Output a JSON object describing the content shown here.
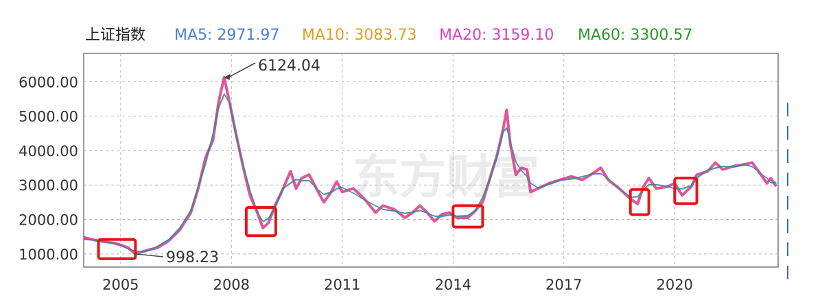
{
  "chart_data": {
    "type": "line",
    "title": "上证指数",
    "legend": [
      {
        "text": "MA5: 2971.97",
        "color": "#4a7fd8"
      },
      {
        "text": "MA10: 3083.73",
        "color": "#e0a020"
      },
      {
        "text": "MA20: 3159.10",
        "color": "#e040c0"
      },
      {
        "text": "MA60: 3300.57",
        "color": "#2a9a2a"
      }
    ],
    "xlim": [
      2004.0,
      2022.8
    ],
    "ylim": [
      620,
      6820
    ],
    "xticks": [
      {
        "value": 2005,
        "label": "2005"
      },
      {
        "value": 2008,
        "label": "2008"
      },
      {
        "value": 2011,
        "label": "2011"
      },
      {
        "value": 2014,
        "label": "2014"
      },
      {
        "value": 2017,
        "label": "2017"
      },
      {
        "value": 2020,
        "label": "2020"
      }
    ],
    "yticks": [
      {
        "value": 1000,
        "label": "1000.00"
      },
      {
        "value": 2000,
        "label": "2000.00"
      },
      {
        "value": 3000,
        "label": "3000.00"
      },
      {
        "value": 4000,
        "label": "4000.00"
      },
      {
        "value": 5000,
        "label": "5000.00"
      },
      {
        "value": 6000,
        "label": "6000.00"
      }
    ],
    "grid": true,
    "watermark": "东方财富",
    "annotations": [
      {
        "label": "6124.04",
        "x": 2007.8,
        "y": 6124.04
      },
      {
        "label": "998.23",
        "x": 2005.4,
        "y": 998.23
      }
    ],
    "highlight_boxes": [
      {
        "x0": 2004.4,
        "x1": 2005.4,
        "y0": 860,
        "y1": 1420
      },
      {
        "x0": 2008.4,
        "x1": 2009.2,
        "y0": 1530,
        "y1": 2350
      },
      {
        "x0": 2014.0,
        "x1": 2014.8,
        "y0": 1780,
        "y1": 2400
      },
      {
        "x0": 2018.8,
        "x1": 2019.3,
        "y0": 2140,
        "y1": 2870
      },
      {
        "x0": 2020.0,
        "x1": 2020.6,
        "y0": 2460,
        "y1": 3200
      }
    ],
    "series": [
      {
        "name": "上证指数",
        "color": "#d83a8a",
        "points": [
          [
            2004.0,
            1480
          ],
          [
            2004.4,
            1380
          ],
          [
            2004.8,
            1320
          ],
          [
            2005.0,
            1260
          ],
          [
            2005.2,
            1180
          ],
          [
            2005.4,
            998.23
          ],
          [
            2005.6,
            1070
          ],
          [
            2005.8,
            1130
          ],
          [
            2006.0,
            1180
          ],
          [
            2006.3,
            1380
          ],
          [
            2006.6,
            1700
          ],
          [
            2006.9,
            2200
          ],
          [
            2007.1,
            2900
          ],
          [
            2007.3,
            3800
          ],
          [
            2007.5,
            4300
          ],
          [
            2007.65,
            5400
          ],
          [
            2007.8,
            6124.04
          ],
          [
            2007.95,
            5400
          ],
          [
            2008.1,
            4600
          ],
          [
            2008.3,
            3600
          ],
          [
            2008.5,
            2700
          ],
          [
            2008.7,
            2200
          ],
          [
            2008.85,
            1750
          ],
          [
            2009.0,
            1900
          ],
          [
            2009.2,
            2450
          ],
          [
            2009.4,
            2900
          ],
          [
            2009.6,
            3400
          ],
          [
            2009.75,
            2900
          ],
          [
            2009.9,
            3200
          ],
          [
            2010.1,
            3300
          ],
          [
            2010.3,
            2900
          ],
          [
            2010.5,
            2500
          ],
          [
            2010.7,
            2800
          ],
          [
            2010.85,
            3100
          ],
          [
            2011.0,
            2800
          ],
          [
            2011.3,
            2900
          ],
          [
            2011.6,
            2600
          ],
          [
            2011.9,
            2200
          ],
          [
            2012.1,
            2400
          ],
          [
            2012.4,
            2300
          ],
          [
            2012.7,
            2050
          ],
          [
            2012.9,
            2200
          ],
          [
            2013.1,
            2400
          ],
          [
            2013.3,
            2200
          ],
          [
            2013.5,
            1950
          ],
          [
            2013.7,
            2150
          ],
          [
            2013.9,
            2200
          ],
          [
            2014.1,
            2050
          ],
          [
            2014.4,
            2050
          ],
          [
            2014.6,
            2250
          ],
          [
            2014.8,
            2500
          ],
          [
            2015.0,
            3200
          ],
          [
            2015.2,
            3900
          ],
          [
            2015.35,
            4600
          ],
          [
            2015.45,
            5178
          ],
          [
            2015.55,
            4200
          ],
          [
            2015.7,
            3300
          ],
          [
            2015.85,
            3500
          ],
          [
            2016.0,
            3450
          ],
          [
            2016.1,
            2800
          ],
          [
            2016.3,
            2900
          ],
          [
            2016.6,
            3050
          ],
          [
            2016.9,
            3150
          ],
          [
            2017.2,
            3250
          ],
          [
            2017.5,
            3150
          ],
          [
            2017.8,
            3350
          ],
          [
            2018.0,
            3500
          ],
          [
            2018.2,
            3150
          ],
          [
            2018.5,
            2900
          ],
          [
            2018.8,
            2600
          ],
          [
            2019.0,
            2450
          ],
          [
            2019.15,
            2950
          ],
          [
            2019.3,
            3200
          ],
          [
            2019.5,
            2900
          ],
          [
            2019.8,
            2950
          ],
          [
            2020.0,
            3050
          ],
          [
            2020.2,
            2700
          ],
          [
            2020.45,
            2950
          ],
          [
            2020.6,
            3300
          ],
          [
            2020.9,
            3400
          ],
          [
            2021.1,
            3650
          ],
          [
            2021.3,
            3450
          ],
          [
            2021.6,
            3550
          ],
          [
            2021.9,
            3600
          ],
          [
            2022.1,
            3650
          ],
          [
            2022.3,
            3350
          ],
          [
            2022.5,
            3050
          ],
          [
            2022.6,
            3200
          ],
          [
            2022.75,
            2960
          ]
        ]
      }
    ]
  }
}
